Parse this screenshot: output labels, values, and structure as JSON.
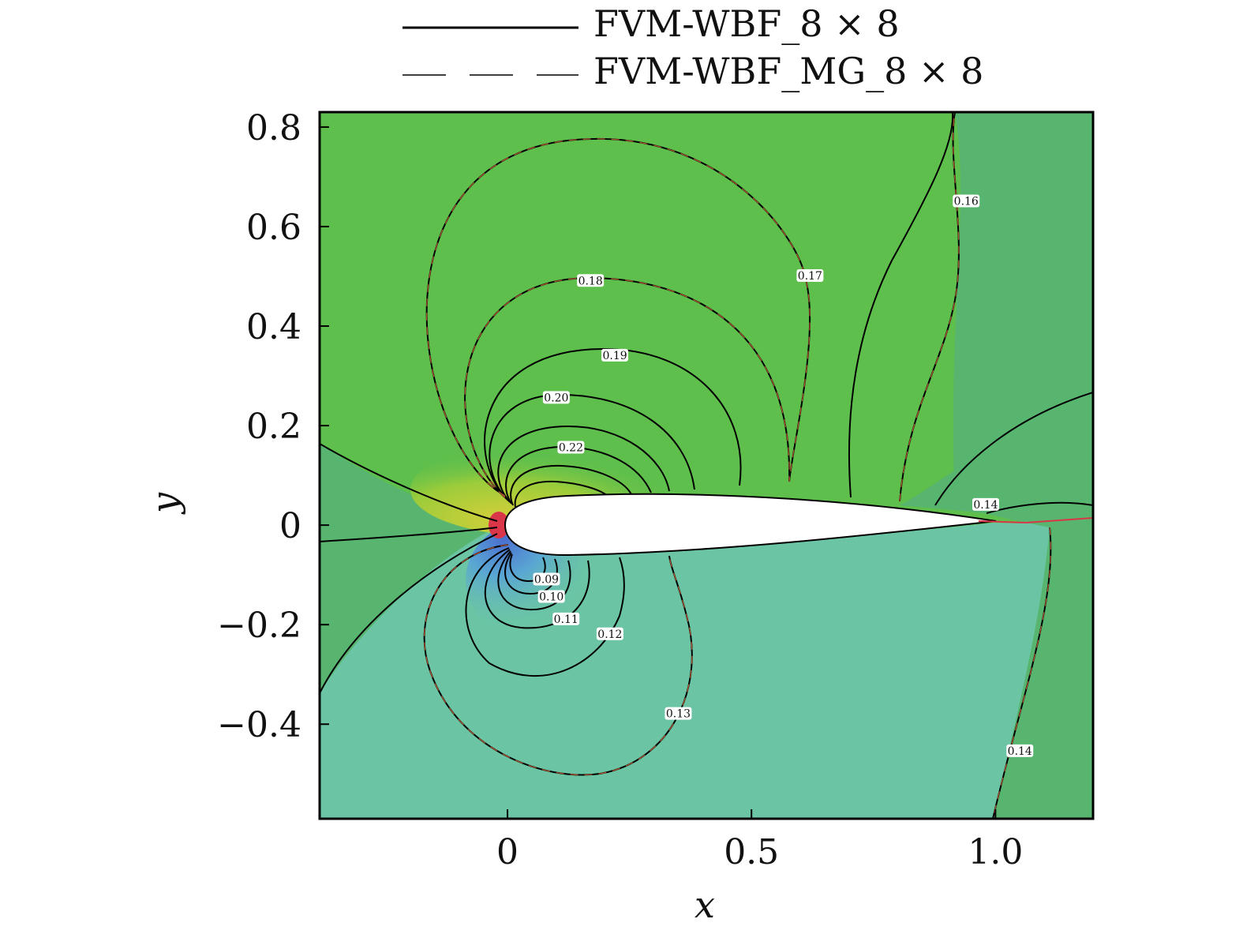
{
  "chart_data": {
    "type": "contour",
    "legend": {
      "placement": "top-center",
      "entries": [
        {
          "label": "FVM-WBF_8 × 8",
          "style": "solid",
          "color": "#000000"
        },
        {
          "label": "FVM-WBF_MG_8 × 8",
          "style": "dashed",
          "color": "#000000"
        }
      ]
    },
    "xlabel": "x",
    "ylabel": "y",
    "xlim": [
      -0.385,
      1.2
    ],
    "ylim": [
      -0.59,
      0.83
    ],
    "x_ticks": [
      {
        "value": 0,
        "label": "0"
      },
      {
        "value": 0.5,
        "label": "0.5"
      },
      {
        "value": 1.0,
        "label": "1.0"
      }
    ],
    "y_ticks": [
      {
        "value": 0.8,
        "label": "0.8"
      },
      {
        "value": 0.6,
        "label": "0.6"
      },
      {
        "value": 0.4,
        "label": "0.4"
      },
      {
        "value": 0.2,
        "label": "0.2"
      },
      {
        "value": 0,
        "label": "0"
      },
      {
        "value": -0.2,
        "label": "−0.2"
      },
      {
        "value": -0.4,
        "label": "−0.4"
      }
    ],
    "fill_regions": [
      {
        "level": "upper",
        "color": "#5ebf4c"
      },
      {
        "level": "far-field",
        "color": "#58b56f"
      },
      {
        "level": "lower",
        "color": "#6bc5a4"
      },
      {
        "level": "suction",
        "color": "#7cc23c"
      },
      {
        "level": "suction-peak",
        "color": "#d3cf3a"
      },
      {
        "level": "stagnation",
        "color": "#d9364a"
      },
      {
        "level": "low",
        "color": "#5aa7d3"
      }
    ],
    "contour_labels": [
      {
        "value": "0.18",
        "x": 0.17,
        "y": 0.49
      },
      {
        "value": "0.19",
        "x": 0.22,
        "y": 0.34
      },
      {
        "value": "0.20",
        "x": 0.1,
        "y": 0.255
      },
      {
        "value": "0.22",
        "x": 0.13,
        "y": 0.155
      },
      {
        "value": "0.17",
        "x": 0.62,
        "y": 0.5
      },
      {
        "value": "0.16",
        "x": 0.94,
        "y": 0.65
      },
      {
        "value": "0.14",
        "x": 0.98,
        "y": 0.04
      },
      {
        "value": "0.09",
        "x": 0.08,
        "y": -0.11
      },
      {
        "value": "0.10",
        "x": 0.09,
        "y": -0.145
      },
      {
        "value": "0.11",
        "x": 0.12,
        "y": -0.19
      },
      {
        "value": "0.12",
        "x": 0.21,
        "y": -0.22
      },
      {
        "value": "0.13",
        "x": 0.35,
        "y": -0.38
      },
      {
        "value": "0.14",
        "x": 1.05,
        "y": -0.455
      }
    ],
    "grid": false
  }
}
